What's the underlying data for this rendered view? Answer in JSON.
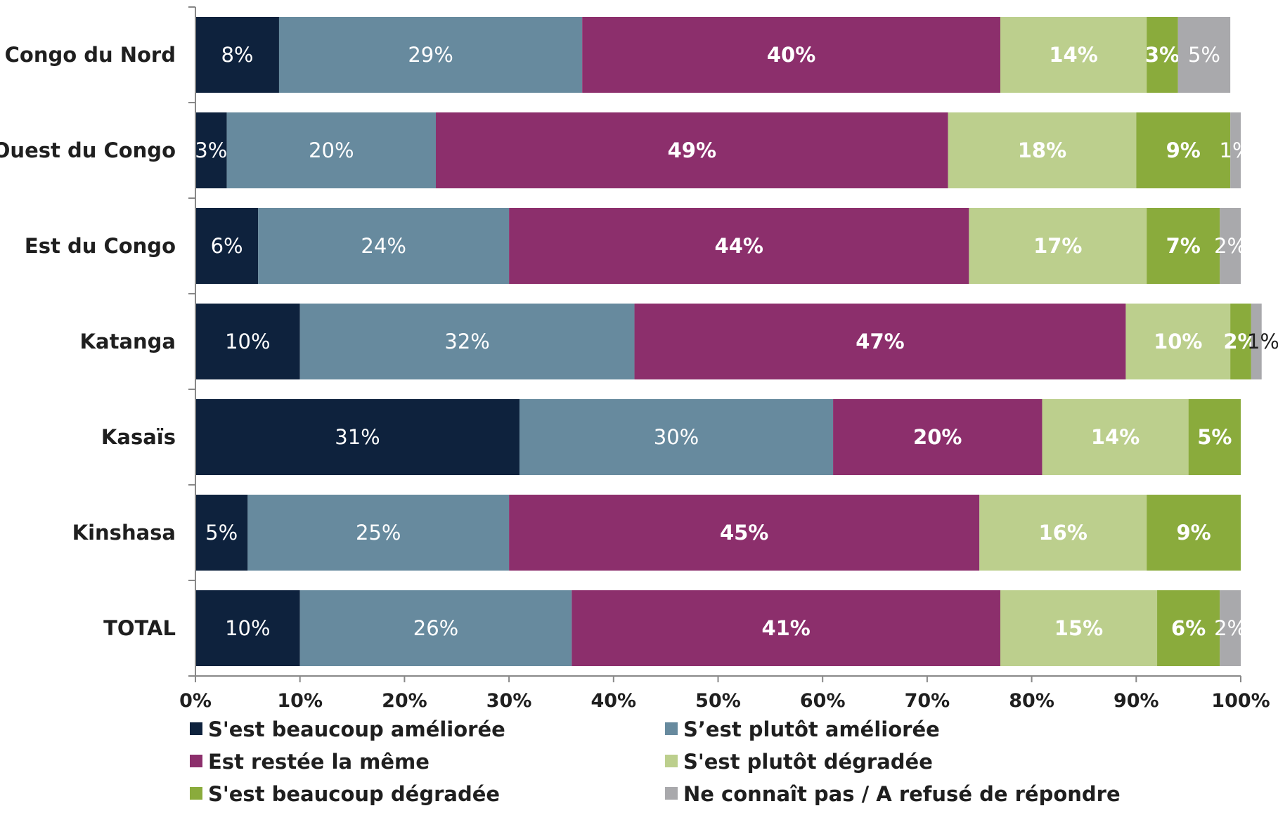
{
  "chart_data": {
    "type": "bar",
    "orientation": "horizontal",
    "stacked": true,
    "categories": [
      "Congo du Nord",
      "Ouest du Congo",
      "Est du Congo",
      "Katanga",
      "Kasaïs",
      "Kinshasa",
      "TOTAL"
    ],
    "series": [
      {
        "name": "S'est beaucoup améliorée",
        "color": "#0e223d",
        "label_color": "#ffffff",
        "label_bold": false,
        "values": [
          8,
          3,
          6,
          10,
          31,
          5,
          10
        ],
        "labels": [
          "8%",
          "3%",
          "6%",
          "10%",
          "31%",
          "5%",
          "10%"
        ]
      },
      {
        "name": "S’est plutôt améliorée",
        "color": "#678a9e",
        "label_color": "#ffffff",
        "label_bold": false,
        "values": [
          29,
          20,
          24,
          32,
          30,
          25,
          26
        ],
        "labels": [
          "29%",
          "20%",
          "24%",
          "32%",
          "30%",
          "25%",
          "26%"
        ]
      },
      {
        "name": "Est restée la même",
        "color": "#8c2f6c",
        "label_color": "#ffffff",
        "label_bold": true,
        "values": [
          40,
          49,
          44,
          47,
          20,
          45,
          41
        ],
        "labels": [
          "40%",
          "49%",
          "44%",
          "47%",
          "20%",
          "45%",
          "41%"
        ]
      },
      {
        "name": "S'est plutôt dégradée",
        "color": "#bccf8d",
        "label_color": "#ffffff",
        "label_bold": true,
        "values": [
          14,
          18,
          17,
          10,
          14,
          16,
          15
        ],
        "labels": [
          "14%",
          "18%",
          "17%",
          "10%",
          "14%",
          "16%",
          "15%"
        ]
      },
      {
        "name": "S'est beaucoup dégradée",
        "color": "#8aab3c",
        "label_color": "#ffffff",
        "label_bold": true,
        "values": [
          3,
          9,
          7,
          2,
          5,
          9,
          6
        ],
        "labels": [
          "3%",
          "9%",
          "7%",
          "2%",
          "5%",
          "9%",
          "6%"
        ]
      },
      {
        "name": "Ne connaît pas / A refusé de répondre",
        "color": "#a9a9ac",
        "label_color": "#ffffff",
        "label_bold": false,
        "values": [
          5,
          1,
          2,
          1,
          0,
          0,
          2
        ],
        "labels": [
          "5%",
          "1%",
          "2%",
          "1%",
          "",
          "",
          "2%"
        ]
      }
    ],
    "xlim": [
      0,
      100
    ],
    "xticks": [
      "0%",
      "10%",
      "20%",
      "30%",
      "40%",
      "50%",
      "60%",
      "70%",
      "80%",
      "90%",
      "100%"
    ],
    "grid": false,
    "legend_position": "bottom"
  }
}
